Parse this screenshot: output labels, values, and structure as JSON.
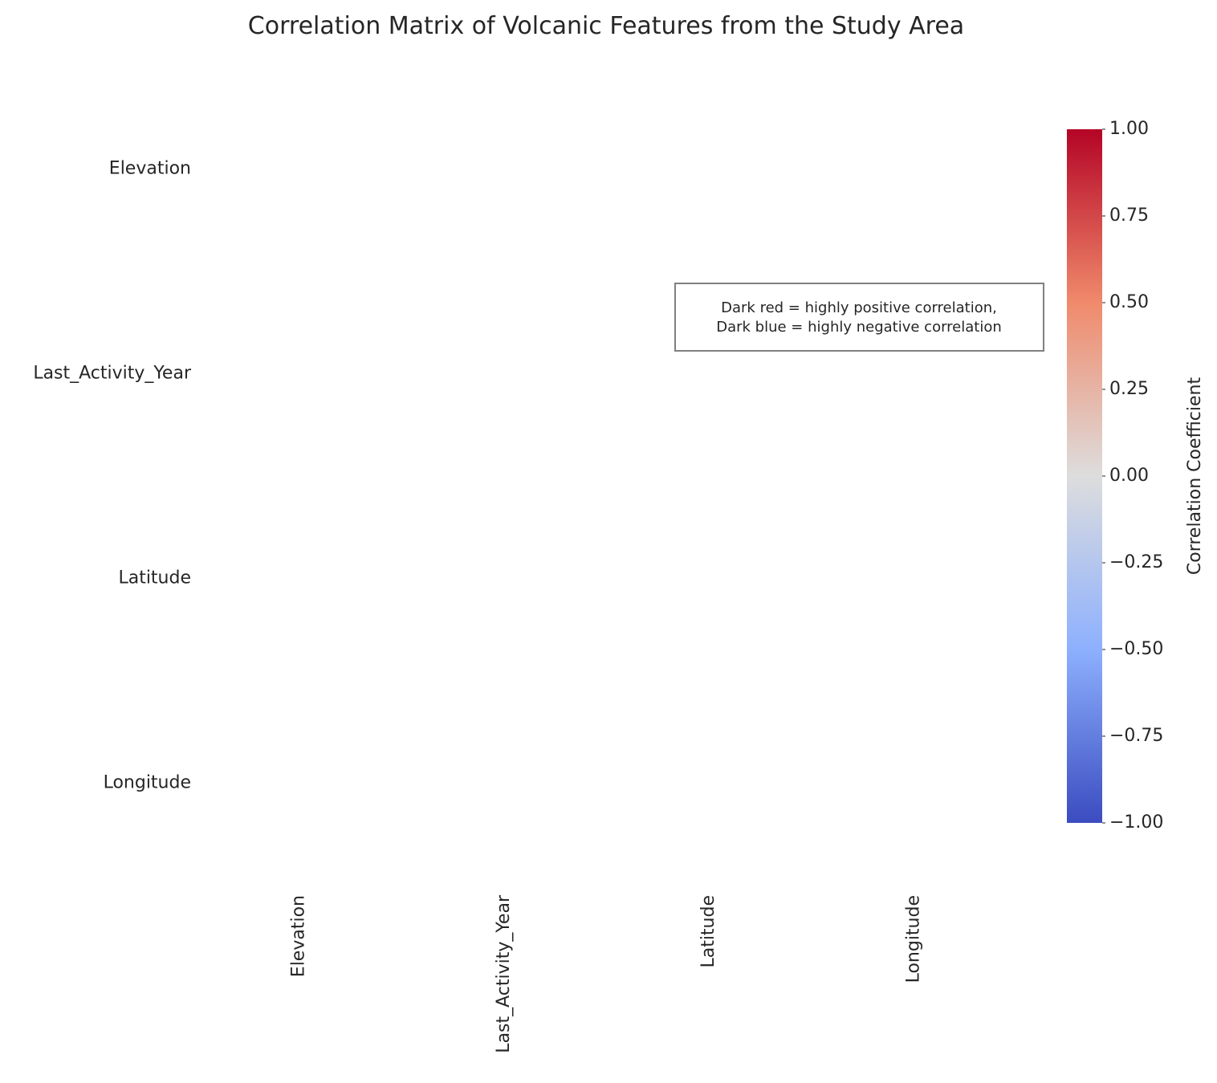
{
  "chart_data": {
    "type": "heatmap",
    "title": "Correlation Matrix of Volcanic Features from the Study Area",
    "rows": [
      "Elevation",
      "Last_Activity_Year",
      "Latitude",
      "Longitude"
    ],
    "columns": [
      "Elevation",
      "Last_Activity_Year",
      "Latitude",
      "Longitude"
    ],
    "values": [
      [
        null,
        null,
        null,
        null
      ],
      [
        null,
        null,
        null,
        null
      ],
      [
        null,
        null,
        null,
        null
      ],
      [
        null,
        null,
        null,
        null
      ]
    ],
    "colormap": "coolwarm",
    "vmin": -1.0,
    "vmax": 1.0,
    "colorbar": {
      "label": "Correlation Coefficient",
      "ticks": [
        1.0,
        0.75,
        0.5,
        0.25,
        0.0,
        -0.25,
        -0.5,
        -0.75,
        -1.0
      ],
      "tick_labels": [
        "1.00",
        "0.75",
        "0.50",
        "0.25",
        "0.00",
        "−0.25",
        "−0.50",
        "−0.75",
        "−1.00"
      ],
      "colors": {
        "top": "#b40426",
        "upper": "#f08a6b",
        "middle": "#dddddd",
        "lower": "#8db0fe",
        "bottom": "#3b4cc0"
      }
    },
    "annotation": {
      "line1": "Dark red = highly positive correlation,",
      "line2": "Dark blue = highly negative correlation"
    },
    "grid": false
  }
}
